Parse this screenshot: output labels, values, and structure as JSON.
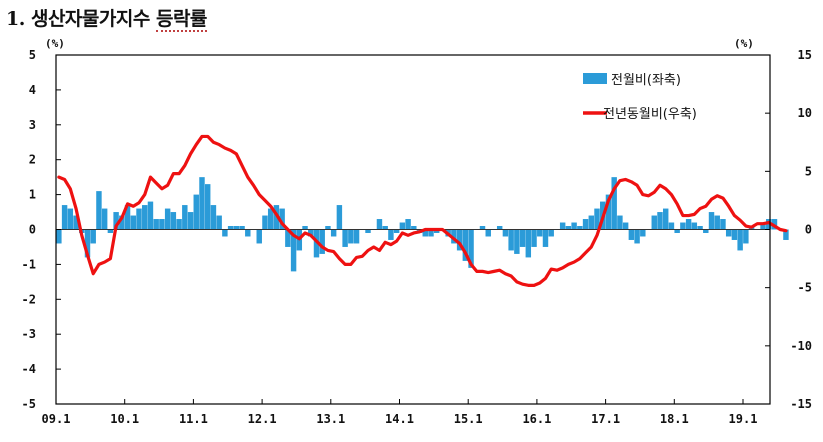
{
  "title_number": "1.",
  "title_main": "생산자물가지수",
  "title_suffix": "등락률",
  "chart_data": {
    "type": "bar+line",
    "x_tick_labels": [
      "09.1",
      "10.1",
      "11.1",
      "12.1",
      "13.1",
      "14.1",
      "15.1",
      "16.1",
      "17.1",
      "18.1",
      "19.1"
    ],
    "x_start": "2009-01",
    "left_unit": "(%)",
    "right_unit": "(%)",
    "left_axis": {
      "ylim": [
        -5,
        5
      ],
      "ticks": [
        -5,
        -4,
        -3,
        -2,
        -1,
        0,
        1,
        2,
        3,
        4,
        5
      ]
    },
    "right_axis": {
      "ylim": [
        -15,
        15
      ],
      "ticks": [
        -15,
        -10,
        -5,
        0,
        5,
        10,
        15
      ]
    },
    "legend": [
      "전월비(좌축)",
      "전년동월비(우축)"
    ],
    "legend_placement": "top-right",
    "colors": {
      "bar": "#2b9bd8",
      "line": "#ee1111",
      "axis": "#000000"
    },
    "series": [
      {
        "name": "전월비(좌축)",
        "axis": "left",
        "type": "bar",
        "values": [
          -0.4,
          0.7,
          0.6,
          0.4,
          -0.1,
          -0.8,
          -0.4,
          1.1,
          0.6,
          -0.1,
          0.5,
          0.4,
          0.7,
          0.4,
          0.6,
          0.7,
          0.8,
          0.3,
          0.3,
          0.6,
          0.5,
          0.3,
          0.7,
          0.5,
          1.0,
          1.5,
          1.3,
          0.7,
          0.4,
          -0.2,
          0.1,
          0.1,
          0.1,
          -0.2,
          0.0,
          -0.4,
          0.4,
          0.6,
          0.7,
          0.6,
          -0.5,
          -1.2,
          -0.6,
          0.1,
          -0.2,
          -0.8,
          -0.7,
          0.1,
          -0.2,
          0.7,
          -0.5,
          -0.4,
          -0.4,
          0.0,
          -0.1,
          0.0,
          0.3,
          0.1,
          -0.3,
          -0.1,
          0.2,
          0.3,
          0.1,
          -0.1,
          -0.2,
          -0.2,
          -0.1,
          0.0,
          -0.2,
          -0.4,
          -0.6,
          -0.9,
          -1.1,
          0.0,
          0.1,
          -0.2,
          0.0,
          0.1,
          -0.2,
          -0.6,
          -0.7,
          -0.5,
          -0.8,
          -0.5,
          -0.2,
          -0.5,
          -0.2,
          0.0,
          0.2,
          0.1,
          0.2,
          0.1,
          0.3,
          0.4,
          0.6,
          0.8,
          1.0,
          1.5,
          0.4,
          0.2,
          -0.3,
          -0.4,
          -0.2,
          0.0,
          0.4,
          0.5,
          0.6,
          0.2,
          -0.1,
          0.2,
          0.3,
          0.2,
          0.1,
          -0.1,
          0.5,
          0.4,
          0.3,
          -0.2,
          -0.3,
          -0.6,
          -0.4,
          0.1,
          0.0,
          0.2,
          0.3,
          0.3,
          0.0,
          -0.3
        ]
      },
      {
        "name": "전년동월비(우축)",
        "axis": "right",
        "type": "line",
        "values": [
          4.5,
          4.3,
          3.5,
          1.8,
          -0.5,
          -2.2,
          -3.8,
          -3.0,
          -2.8,
          -2.5,
          0.3,
          1.0,
          2.2,
          2.0,
          2.3,
          3.0,
          4.5,
          4.0,
          3.5,
          3.8,
          4.8,
          4.8,
          5.5,
          6.5,
          7.3,
          8.0,
          8.0,
          7.5,
          7.3,
          7.0,
          6.8,
          6.5,
          5.5,
          4.5,
          3.8,
          3.0,
          2.5,
          2.0,
          1.3,
          0.5,
          0.0,
          -0.5,
          -0.8,
          -0.3,
          -0.5,
          -1.0,
          -1.5,
          -1.8,
          -1.9,
          -2.5,
          -3.0,
          -3.0,
          -2.4,
          -2.3,
          -1.8,
          -1.5,
          -1.8,
          -1.1,
          -1.3,
          -1.0,
          -0.3,
          -0.5,
          -0.3,
          -0.2,
          0.0,
          0.0,
          0.0,
          0.0,
          -0.4,
          -0.8,
          -1.2,
          -2.0,
          -3.0,
          -3.6,
          -3.6,
          -3.7,
          -3.6,
          -3.5,
          -3.8,
          -4.0,
          -4.5,
          -4.7,
          -4.8,
          -4.8,
          -4.6,
          -4.2,
          -3.4,
          -3.5,
          -3.3,
          -3.0,
          -2.8,
          -2.5,
          -2.0,
          -1.5,
          -0.5,
          1.0,
          2.5,
          3.5,
          4.2,
          4.3,
          4.1,
          3.8,
          3.0,
          2.9,
          3.2,
          3.8,
          3.5,
          3.0,
          2.2,
          1.2,
          1.2,
          1.3,
          1.8,
          2.0,
          2.6,
          2.9,
          2.7,
          2.0,
          1.2,
          0.8,
          0.3,
          0.2,
          0.5,
          0.5,
          0.6,
          0.3,
          0.0,
          -0.1
        ]
      }
    ]
  }
}
